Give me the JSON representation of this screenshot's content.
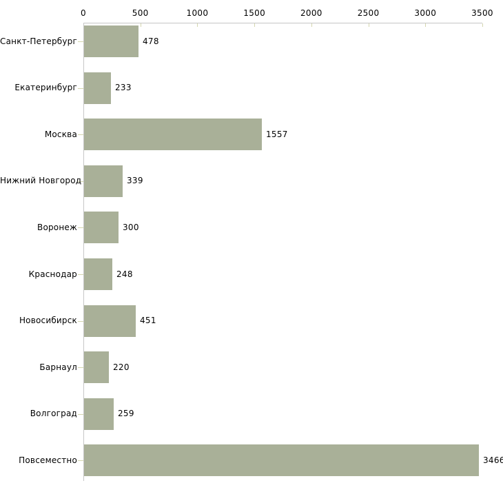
{
  "chart_data": {
    "type": "bar",
    "orientation": "horizontal",
    "title": "",
    "xlabel": "",
    "ylabel": "",
    "categories": [
      "Санкт-Петербург",
      "Екатеринбург",
      "Москва",
      "Нижний Новгород",
      "Воронеж",
      "Краснодар",
      "Новосибирск",
      "Барнаул",
      "Волгоград",
      "Повсеместно"
    ],
    "values": [
      478,
      233,
      1557,
      339,
      300,
      248,
      451,
      220,
      259,
      3466
    ],
    "value_labels": [
      "478",
      "233",
      "1557",
      "339",
      "300",
      "248",
      "451",
      "220",
      "259",
      "3466"
    ],
    "xlim": [
      0,
      3500
    ],
    "xticks": [
      0,
      500,
      1000,
      1500,
      2000,
      2500,
      3000,
      3500
    ],
    "xtick_labels": [
      "0",
      "500",
      "1000",
      "1500",
      "2000",
      "2500",
      "3000",
      "3500"
    ],
    "xaxis_position": "top",
    "grid": "off",
    "legend": "none",
    "colors": {
      "bar": "#a9b098",
      "axis_line": "#c6c6c6",
      "tick_mark": "#d4d6ae",
      "text": "#000000",
      "background": "#ffffff"
    }
  }
}
